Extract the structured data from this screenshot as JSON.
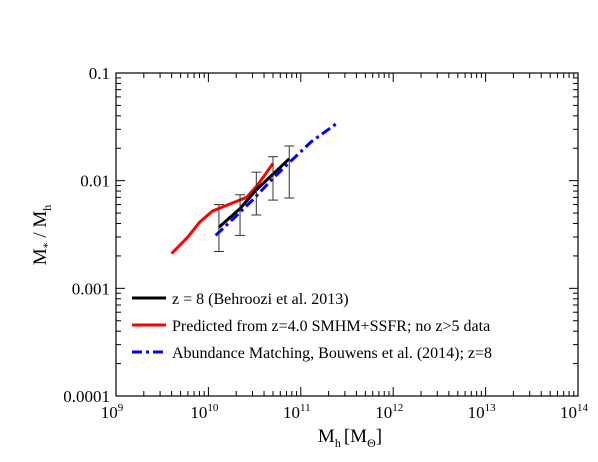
{
  "chart_data": {
    "type": "line",
    "x_axis": {
      "base_label": "M",
      "subscript": "h",
      "units": "[M",
      "units_sub": "Θ",
      "units_close": "]",
      "scale": "log",
      "range": [
        1000000000.0,
        100000000000000.0
      ],
      "tick_base": "10",
      "tick_exponents": [
        "9",
        "10",
        "11",
        "12",
        "13",
        "14"
      ]
    },
    "y_axis": {
      "label_main": "M",
      "label_star": "*",
      "label_sep": " / M",
      "label_sub": "h",
      "scale": "log",
      "range": [
        0.0001,
        0.1
      ],
      "tick_labels": [
        "0.0001",
        "0.001",
        "0.01",
        "0.1"
      ]
    },
    "grid": false,
    "legend_placement": "bottom-left",
    "series": [
      {
        "name": "z = 8 (Behroozi et al. 2013)",
        "color": "#000000",
        "style": "solid",
        "x": [
          13000000000.0,
          22000000000.0,
          33000000000.0,
          50000000000.0,
          75000000000.0
        ],
        "y": [
          0.0037,
          0.0055,
          0.0082,
          0.0115,
          0.016
        ],
        "error_low": [
          0.0022,
          0.0031,
          0.0048,
          0.0066,
          0.0069
        ],
        "error_high": [
          0.006,
          0.0074,
          0.012,
          0.0167,
          0.021
        ]
      },
      {
        "name": "Predicted from z=4.0 SMHM+SSFR; no z>5 data",
        "color": "#ff0000",
        "style": "solid",
        "x": [
          4000000000.0,
          6000000000.0,
          8000000000.0,
          11000000000.0,
          15000000000.0,
          20000000000.0,
          26000000000.0,
          33000000000.0,
          40000000000.0,
          50000000000.0
        ],
        "y": [
          0.0021,
          0.003,
          0.0041,
          0.0052,
          0.0058,
          0.0064,
          0.007,
          0.0088,
          0.011,
          0.0145
        ]
      },
      {
        "name": "Abundance Matching, Bouwens et al. (2014); z=8",
        "color": "#0000ff",
        "style": "dash-dot",
        "x": [
          12000000000.0,
          20000000000.0,
          30000000000.0,
          50000000000.0,
          80000000000.0,
          130000000000.0,
          200000000000.0,
          250000000000.0
        ],
        "y": [
          0.0031,
          0.0047,
          0.0066,
          0.0105,
          0.0155,
          0.023,
          0.03,
          0.0345
        ]
      }
    ]
  }
}
